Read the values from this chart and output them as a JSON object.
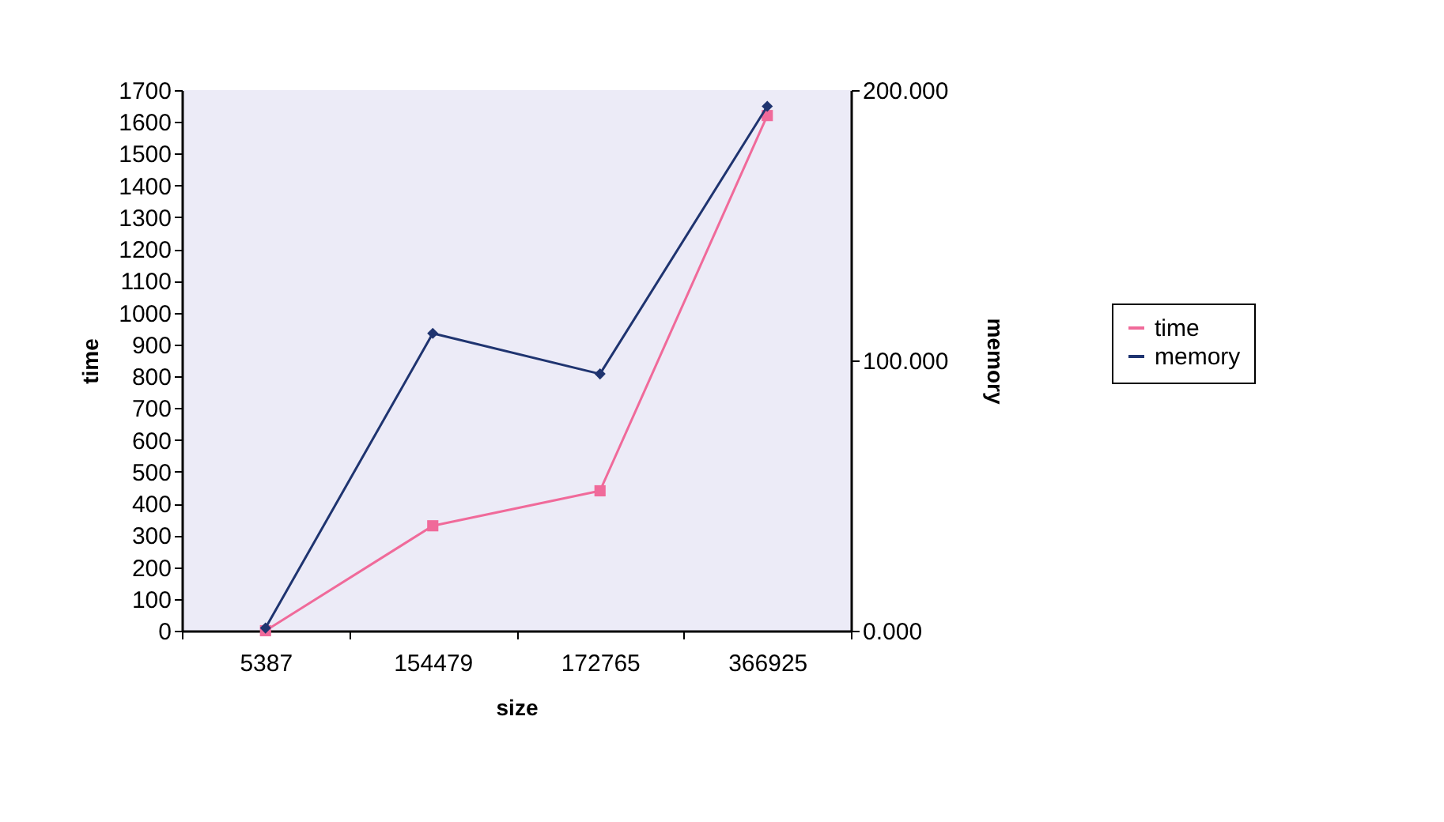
{
  "chart_data": {
    "type": "line",
    "xlabel": "size",
    "ylabel": "time",
    "y2label": "memory",
    "categories": [
      "5387",
      "154479",
      "172765",
      "366925"
    ],
    "series": [
      {
        "name": "time",
        "color": "#f06a9a",
        "marker": "square",
        "values": [
          0,
          330,
          440,
          1620
        ]
      },
      {
        "name": "memory",
        "color": "#1f3470",
        "marker": "diamond",
        "axis": "y2",
        "values": [
          1,
          110,
          95,
          194
        ]
      }
    ],
    "ylim": [
      0,
      1700
    ],
    "yticks": [
      0,
      100,
      200,
      300,
      400,
      500,
      600,
      700,
      800,
      900,
      1000,
      1100,
      1200,
      1300,
      1400,
      1500,
      1600,
      1700
    ],
    "y2lim": [
      0,
      200
    ],
    "y2ticks": [
      {
        "value": 0,
        "label": "0.000"
      },
      {
        "value": 100,
        "label": "100.000"
      },
      {
        "value": 200,
        "label": "200.000"
      }
    ],
    "grid": false,
    "legend": "right"
  }
}
